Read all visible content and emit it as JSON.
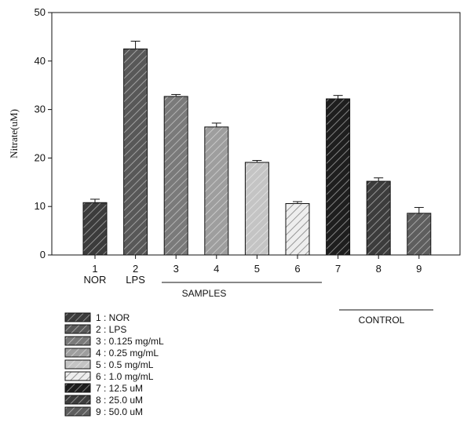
{
  "chart_data": {
    "type": "bar",
    "ylabel": "Nitrate(uM)",
    "ylim": [
      0,
      50
    ],
    "yticks": [
      0,
      10,
      20,
      30,
      40,
      50
    ],
    "categories": [
      {
        "number": "1",
        "sublabel": "NOR",
        "value": 10.8,
        "error": 0.7,
        "color": "#3c3c3c"
      },
      {
        "number": "2",
        "sublabel": "LPS",
        "value": 42.5,
        "error": 1.6,
        "color": "#585858"
      },
      {
        "number": "3",
        "sublabel": "",
        "value": 32.7,
        "error": 0.4,
        "color": "#7a7a7a"
      },
      {
        "number": "4",
        "sublabel": "",
        "value": 26.4,
        "error": 0.8,
        "color": "#9e9e9e"
      },
      {
        "number": "5",
        "sublabel": "",
        "value": 19.1,
        "error": 0.4,
        "color": "#c4c4c4"
      },
      {
        "number": "6",
        "sublabel": "",
        "value": 10.6,
        "error": 0.4,
        "color": "#eeeeee"
      },
      {
        "number": "7",
        "sublabel": "",
        "value": 32.2,
        "error": 0.7,
        "color": "#1e1e1e"
      },
      {
        "number": "8",
        "sublabel": "",
        "value": 15.2,
        "error": 0.7,
        "color": "#3c3c3c"
      },
      {
        "number": "9",
        "sublabel": "",
        "value": 8.6,
        "error": 1.2,
        "color": "#5e5e5e"
      }
    ],
    "groups": [
      {
        "label": "SAMPLES"
      },
      {
        "label": "CONTROL"
      }
    ],
    "legend": [
      "1 : NOR",
      "2 : LPS",
      "3 : 0.125 mg/mL",
      "4 : 0.25 mg/mL",
      "5 : 0.5 mg/mL",
      "6 : 1.0 mg/mL",
      "7 : 12.5 uM",
      "8 : 25.0 uM",
      "9 : 50.0 uM"
    ],
    "grid": false,
    "legend_position": "bottom-left"
  }
}
